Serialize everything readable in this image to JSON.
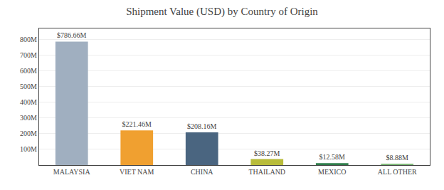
{
  "chart_data": {
    "type": "bar",
    "title": "Shipment Value (USD) by Country of Origin",
    "categories": [
      "MALAYSIA",
      "VIET NAM",
      "CHINA",
      "THAILAND",
      "MEXICO",
      "ALL OTHER"
    ],
    "values": [
      786.66,
      221.46,
      208.16,
      38.27,
      12.58,
      8.88
    ],
    "value_labels": [
      "$786.66M",
      "$221.46M",
      "$208.16M",
      "$38.27M",
      "$12.58M",
      "$8.88M"
    ],
    "data_labels": true,
    "colors": [
      "#a0afc0",
      "#f0a030",
      "#4a6580",
      "#b8bc3a",
      "#2e7d4a",
      "#7fba7a"
    ],
    "ylim": [
      0,
      870
    ],
    "yticks": [
      {
        "value": 100,
        "label": "100M"
      },
      {
        "value": 200,
        "label": "200M"
      },
      {
        "value": 300,
        "label": "300M"
      },
      {
        "value": 400,
        "label": "400M"
      },
      {
        "value": 500,
        "label": "500M"
      },
      {
        "value": 600,
        "label": "600M"
      },
      {
        "value": 700,
        "label": "700M"
      },
      {
        "value": 800,
        "label": "800M"
      }
    ],
    "grid": true
  }
}
